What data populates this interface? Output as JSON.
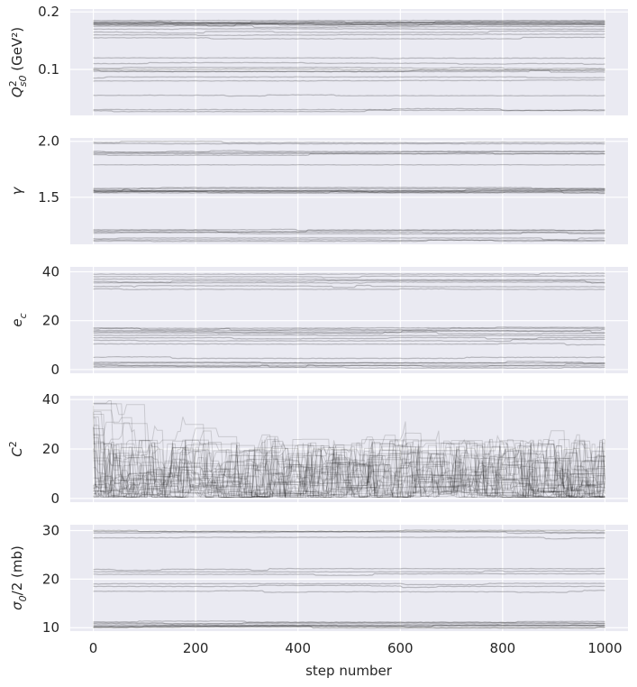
{
  "figure": {
    "xlabel": "step number"
  },
  "chart_data": [
    {
      "type": "line",
      "ylabel": "Q²s0 (GeV²)",
      "ylabel_main": "Q",
      "ylabel_sup": "2",
      "ylabel_sub": "s0",
      "ylabel_unit": " (GeV²)",
      "xlim": [
        -45,
        1045
      ],
      "ylim": [
        0.02,
        0.205
      ],
      "xticks": [
        0,
        200,
        400,
        600,
        800,
        1000
      ],
      "yticks": [
        0.1,
        0.2
      ],
      "ytick_labels": [
        "0.1",
        "0.2"
      ],
      "grid": true,
      "walker_levels": [
        0.18,
        0.178,
        0.182,
        0.179,
        0.181,
        0.183,
        0.177,
        0.16,
        0.165,
        0.17,
        0.175,
        0.185,
        0.155,
        0.12,
        0.11,
        0.1,
        0.098,
        0.102,
        0.097,
        0.085,
        0.08,
        0.055,
        0.03,
        0.028
      ],
      "steps": 1000
    },
    {
      "type": "line",
      "ylabel": "γ",
      "xlim": [
        -45,
        1045
      ],
      "ylim": [
        1.08,
        2.03
      ],
      "xticks": [
        0,
        200,
        400,
        600,
        800,
        1000
      ],
      "yticks": [
        1.5,
        2.0
      ],
      "ytick_labels": [
        "1.5",
        "2.0"
      ],
      "grid": true,
      "walker_levels": [
        1.99,
        1.98,
        1.9,
        1.89,
        1.91,
        1.88,
        1.79,
        1.56,
        1.55,
        1.57,
        1.54,
        1.58,
        1.555,
        1.545,
        1.565,
        1.2,
        1.19,
        1.18,
        1.21,
        1.12,
        1.11,
        1.13
      ],
      "steps": 1000
    },
    {
      "type": "line",
      "ylabel": "e_c",
      "ylabel_main": "e",
      "ylabel_sub": "c",
      "xlim": [
        -45,
        1045
      ],
      "ylim": [
        -1.5,
        42
      ],
      "xticks": [
        0,
        200,
        400,
        600,
        800,
        1000
      ],
      "yticks": [
        0,
        20,
        40
      ],
      "ytick_labels": [
        "0",
        "20",
        "40"
      ],
      "grid": true,
      "walker_levels": [
        39,
        38,
        37,
        36,
        35.5,
        34,
        33,
        17,
        16.5,
        16,
        15.5,
        15,
        14,
        13,
        12,
        10.5,
        5,
        3,
        2.5,
        2,
        1.5,
        1
      ],
      "steps": 1000
    },
    {
      "type": "line",
      "ylabel": "C²",
      "ylabel_main": "C",
      "ylabel_sup": "2",
      "xlim": [
        -45,
        1045
      ],
      "ylim": [
        -1.5,
        41.5
      ],
      "xticks": [
        0,
        200,
        400,
        600,
        800,
        1000
      ],
      "yticks": [
        0,
        20,
        40
      ],
      "ytick_labels": [
        "0",
        "20",
        "40"
      ],
      "grid": true,
      "walker_count": 40,
      "range": [
        0.5,
        39.5
      ],
      "steps": 1000
    },
    {
      "type": "line",
      "ylabel": "σ0/2 (mb)",
      "ylabel_main": "σ",
      "ylabel_sub": "0",
      "ylabel_rest": "/2 (mb)",
      "xlim": [
        -45,
        1045
      ],
      "ylim": [
        9.3,
        31.2
      ],
      "xticks": [
        0,
        200,
        400,
        600,
        800,
        1000
      ],
      "yticks": [
        10,
        20,
        30
      ],
      "ytick_labels": [
        "10",
        "20",
        "30"
      ],
      "xtick_labels": [
        "0",
        "200",
        "400",
        "600",
        "800",
        "1000"
      ],
      "grid": true,
      "walker_levels": [
        30,
        29.8,
        29.5,
        28.5,
        22,
        21.5,
        21,
        19,
        18.5,
        17.5,
        11.2,
        11,
        10.8,
        10.5,
        10.3,
        10.2,
        10.1,
        10.05
      ],
      "steps": 1000
    }
  ]
}
